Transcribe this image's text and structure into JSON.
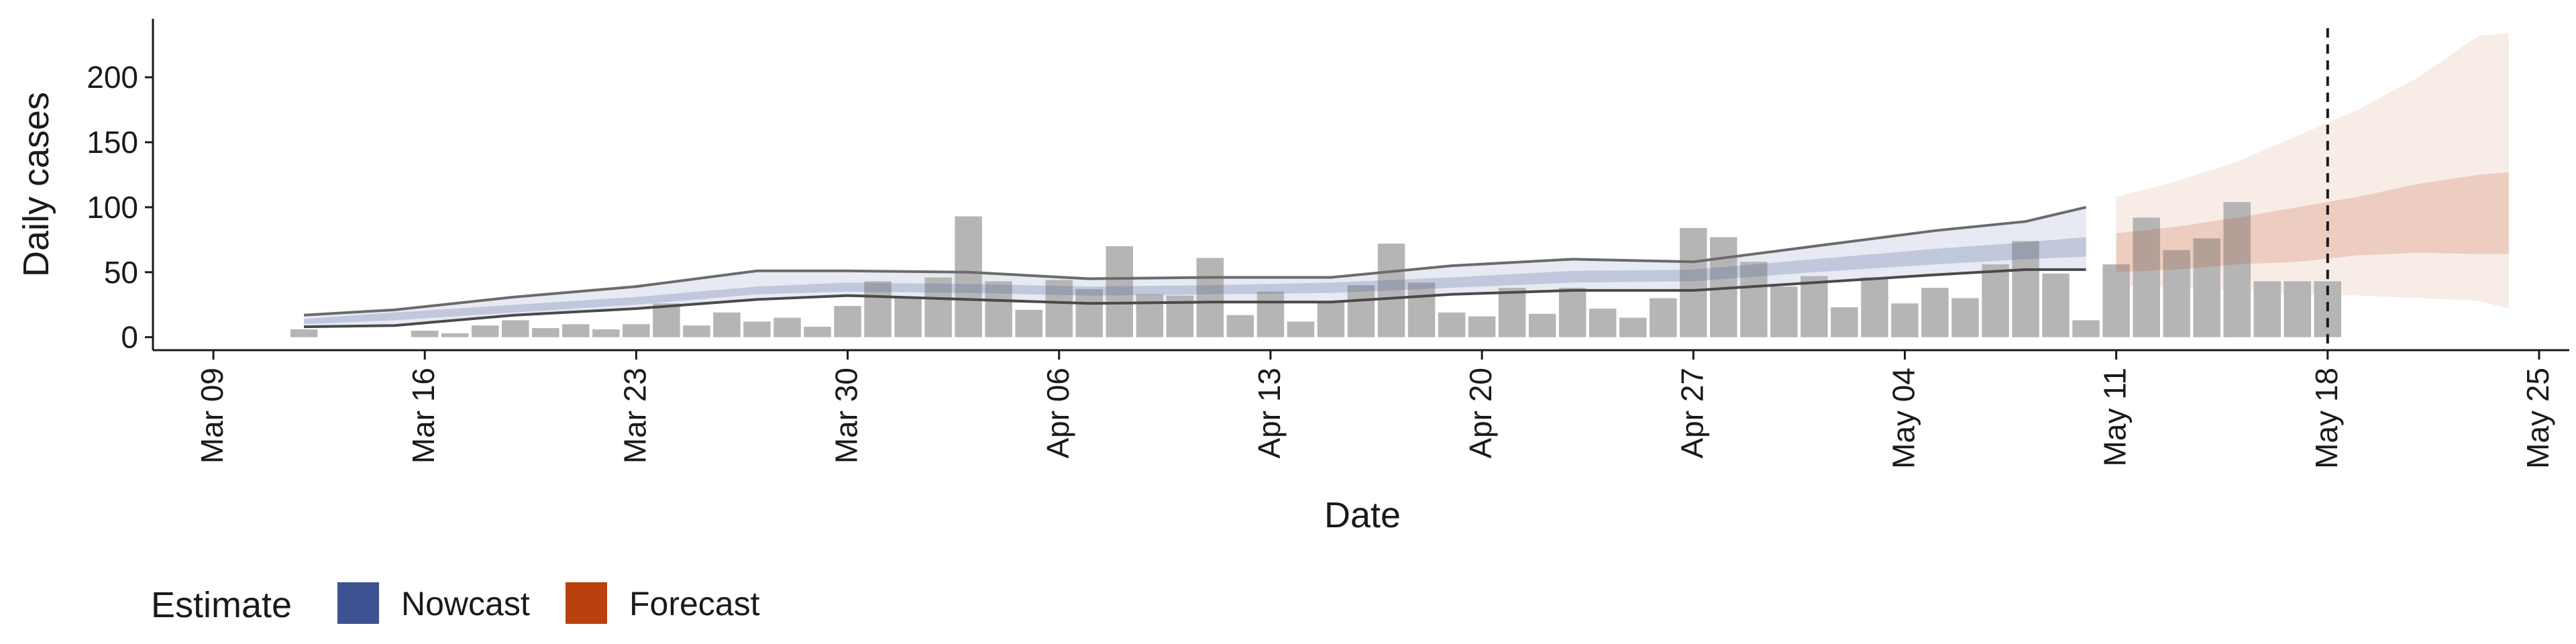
{
  "chart_data": {
    "type": "bar",
    "xlabel": "Date",
    "ylabel": "Daily cases",
    "ylim": [
      -10,
      245
    ],
    "xlim": [
      "2020-03-07",
      "2020-05-26"
    ],
    "y_ticks": [
      0,
      50,
      100,
      150,
      200
    ],
    "x_ticks": [
      {
        "date": "2020-03-09",
        "label": "Mar 09"
      },
      {
        "date": "2020-03-16",
        "label": "Mar 16"
      },
      {
        "date": "2020-03-23",
        "label": "Mar 23"
      },
      {
        "date": "2020-03-30",
        "label": "Mar 30"
      },
      {
        "date": "2020-04-06",
        "label": "Apr 06"
      },
      {
        "date": "2020-04-13",
        "label": "Apr 13"
      },
      {
        "date": "2020-04-20",
        "label": "Apr 20"
      },
      {
        "date": "2020-04-27",
        "label": "Apr 27"
      },
      {
        "date": "2020-05-04",
        "label": "May 04"
      },
      {
        "date": "2020-05-11",
        "label": "May 11"
      },
      {
        "date": "2020-05-18",
        "label": "May 18"
      },
      {
        "date": "2020-05-25",
        "label": "May 25"
      }
    ],
    "reported_cases": {
      "dates": [
        "2020-03-12",
        "2020-03-13",
        "2020-03-14",
        "2020-03-15",
        "2020-03-16",
        "2020-03-17",
        "2020-03-18",
        "2020-03-19",
        "2020-03-20",
        "2020-03-21",
        "2020-03-22",
        "2020-03-23",
        "2020-03-24",
        "2020-03-25",
        "2020-03-26",
        "2020-03-27",
        "2020-03-28",
        "2020-03-29",
        "2020-03-30",
        "2020-03-31",
        "2020-04-01",
        "2020-04-02",
        "2020-04-03",
        "2020-04-04",
        "2020-04-05",
        "2020-04-06",
        "2020-04-07",
        "2020-04-08",
        "2020-04-09",
        "2020-04-10",
        "2020-04-11",
        "2020-04-12",
        "2020-04-13",
        "2020-04-14",
        "2020-04-15",
        "2020-04-16",
        "2020-04-17",
        "2020-04-18",
        "2020-04-19",
        "2020-04-20",
        "2020-04-21",
        "2020-04-22",
        "2020-04-23",
        "2020-04-24",
        "2020-04-25",
        "2020-04-26",
        "2020-04-27",
        "2020-04-28",
        "2020-04-29",
        "2020-04-30",
        "2020-05-01",
        "2020-05-02",
        "2020-05-03",
        "2020-05-04",
        "2020-05-05",
        "2020-05-06",
        "2020-05-07",
        "2020-05-08",
        "2020-05-09",
        "2020-05-10",
        "2020-05-11",
        "2020-05-12",
        "2020-05-13",
        "2020-05-14",
        "2020-05-15",
        "2020-05-16",
        "2020-05-17",
        "2020-05-18"
      ],
      "values": [
        6,
        0,
        0,
        0,
        5,
        3,
        9,
        13,
        7,
        10,
        6,
        10,
        26,
        9,
        19,
        12,
        15,
        8,
        24,
        43,
        30,
        46,
        93,
        43,
        21,
        44,
        37,
        70,
        33,
        32,
        61,
        17,
        35,
        12,
        27,
        40,
        72,
        42,
        19,
        16,
        38,
        18,
        38,
        22,
        15,
        30,
        84,
        77,
        58,
        39,
        47,
        23,
        46,
        26,
        38,
        30,
        56,
        74,
        49,
        13,
        56,
        92,
        67,
        76,
        104,
        43,
        43,
        43
      ]
    },
    "estimates": [
      {
        "name": "Nowcast",
        "color": "#3c5291",
        "dates": [
          "2020-03-12",
          "2020-03-15",
          "2020-03-19",
          "2020-03-23",
          "2020-03-27",
          "2020-03-30",
          "2020-04-03",
          "2020-04-07",
          "2020-04-11",
          "2020-04-15",
          "2020-04-19",
          "2020-04-23",
          "2020-04-27",
          "2020-05-01",
          "2020-05-05",
          "2020-05-08",
          "2020-05-10"
        ],
        "median": [
          12,
          16,
          22,
          28,
          36,
          38,
          37,
          35,
          36,
          38,
          42,
          46,
          47,
          55,
          62,
          67,
          70
        ],
        "lower_50": [
          10,
          13,
          19,
          25,
          33,
          35,
          34,
          32,
          33,
          34,
          38,
          42,
          43,
          50,
          56,
          60,
          62
        ],
        "upper_50": [
          14,
          19,
          25,
          31,
          39,
          42,
          41,
          39,
          40,
          42,
          46,
          51,
          52,
          60,
          68,
          73,
          77
        ],
        "lower_90": [
          8,
          9,
          17,
          22,
          29,
          32,
          29,
          26,
          27,
          27,
          33,
          36,
          36,
          42,
          48,
          52,
          52
        ],
        "upper_90": [
          17,
          21,
          31,
          39,
          51,
          51,
          50,
          45,
          46,
          46,
          55,
          60,
          58,
          70,
          82,
          89,
          100
        ]
      },
      {
        "name": "Forecast",
        "color": "#b8410f",
        "dates": [
          "2020-05-11",
          "2020-05-13",
          "2020-05-15",
          "2020-05-17",
          "2020-05-19",
          "2020-05-21",
          "2020-05-23",
          "2020-05-24"
        ],
        "median": [
          65,
          68,
          72,
          76,
          82,
          90,
          96,
          98
        ],
        "lower_50": [
          50,
          52,
          56,
          58,
          63,
          65,
          64,
          64
        ],
        "upper_50": [
          80,
          85,
          92,
          100,
          108,
          118,
          125,
          127
        ],
        "lower_90": [
          40,
          38,
          36,
          33,
          32,
          30,
          28,
          22
        ],
        "upper_90": [
          108,
          120,
          135,
          155,
          175,
          200,
          232,
          234
        ]
      }
    ],
    "forecast_date": "2020-05-18",
    "legend": {
      "title": "Estimate",
      "position": "bottom-left",
      "items": [
        {
          "label": "Nowcast",
          "color": "#3c5291"
        },
        {
          "label": "Forecast",
          "color": "#b8410f"
        }
      ]
    },
    "grid": false
  }
}
